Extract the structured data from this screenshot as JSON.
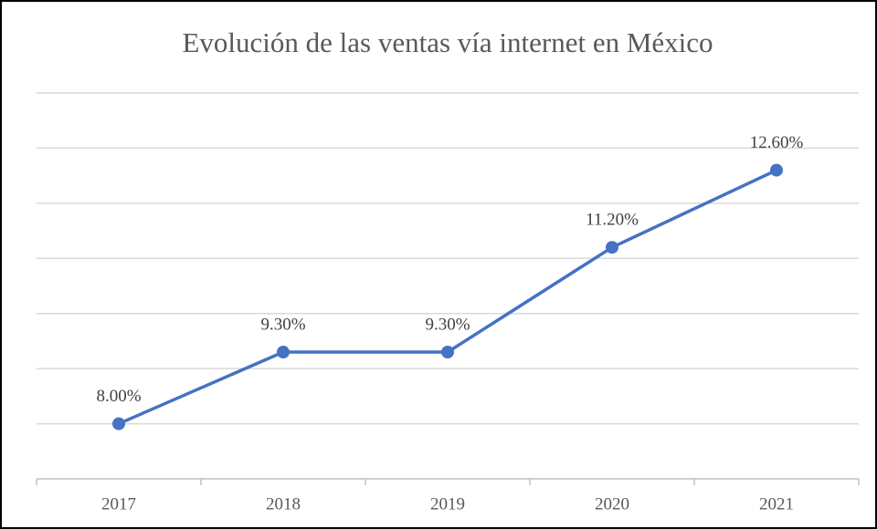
{
  "chart_data": {
    "type": "line",
    "title": "Evolución de las ventas vía internet en México",
    "categories": [
      "2017",
      "2018",
      "2019",
      "2020",
      "2021"
    ],
    "series": [
      {
        "color": "#4472c4",
        "values": [
          8,
          9.3,
          9.3,
          11.2,
          12.6
        ],
        "value_labels": [
          "8.00%",
          "9.30%",
          "9.30%",
          "11.20%",
          "12.60%"
        ]
      }
    ],
    "ylim": [
      7,
      14
    ],
    "yticks": [
      8,
      9,
      10,
      11,
      12,
      13,
      14
    ],
    "ytick_labels": false,
    "grid": true
  }
}
